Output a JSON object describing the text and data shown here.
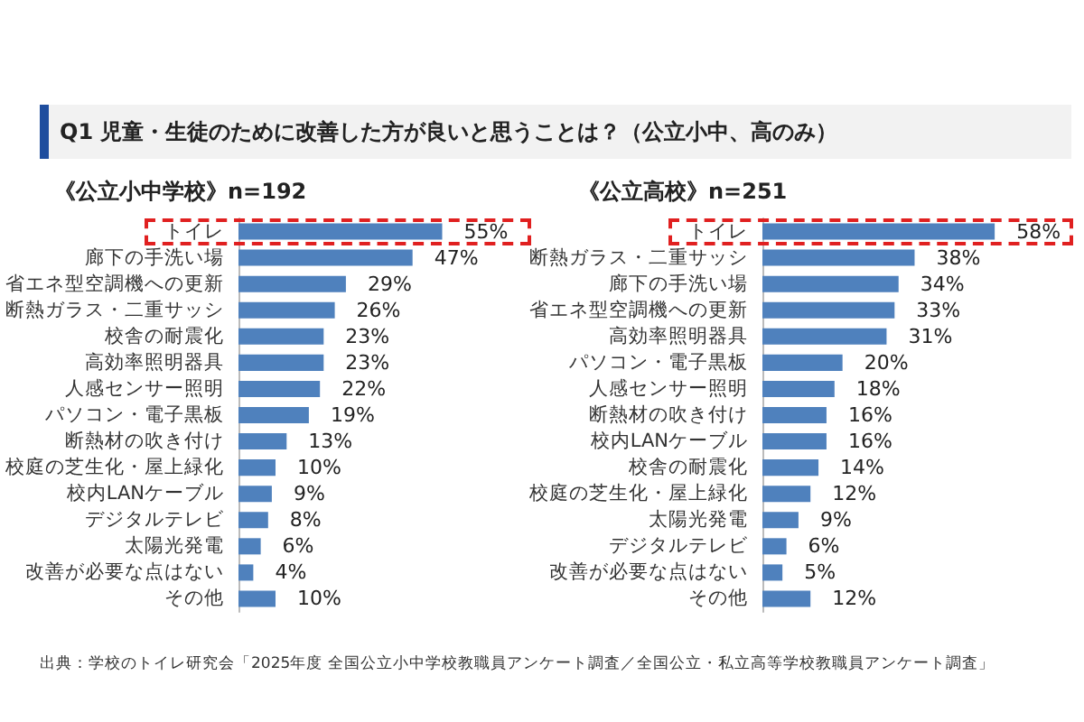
{
  "chart_data": [
    {
      "type": "bar",
      "orientation": "horizontal",
      "title": "Q1 児童・生徒のために改善した方が良いと思うことは？（公立小中、高のみ）",
      "subtitle": "《公立小中学校》n=192",
      "categories": [
        "トイレ",
        "廊下の手洗い場",
        "省エネ型空調機への更新",
        "断熱ガラス・二重サッシ",
        "校舎の耐震化",
        "高効率照明器具",
        "人感センサー照明",
        "パソコン・電子黒板",
        "断熱材の吹き付け",
        "校庭の芝生化・屋上緑化",
        "校内LANケーブル",
        "デジタルテレビ",
        "太陽光発電",
        "改善が必要な点はない",
        "その他"
      ],
      "values": [
        55,
        47,
        29,
        26,
        23,
        23,
        22,
        19,
        13,
        10,
        9,
        8,
        6,
        4,
        10
      ],
      "value_labels": [
        "55%",
        "47%",
        "29%",
        "26%",
        "23%",
        "23%",
        "22%",
        "19%",
        "13%",
        "10%",
        "9%",
        "8%",
        "6%",
        "4%",
        "10%"
      ],
      "color": "#4f81bd",
      "tick_labels": "y"
    },
    {
      "type": "bar",
      "orientation": "horizontal",
      "subtitle": "《公立高校》n=251",
      "categories": [
        "トイレ",
        "断熱ガラス・二重サッシ",
        "廊下の手洗い場",
        "省エネ型空調機への更新",
        "高効率照明器具",
        "パソコン・電子黒板",
        "人感センサー照明",
        "断熱材の吹き付け",
        "校内LANケーブル",
        "校舎の耐震化",
        "校庭の芝生化・屋上緑化",
        "太陽光発電",
        "デジタルテレビ",
        "改善が必要な点はない",
        "その他"
      ],
      "values": [
        58,
        38,
        34,
        33,
        31,
        20,
        18,
        16,
        16,
        14,
        12,
        9,
        6,
        5,
        12
      ],
      "value_labels": [
        "58%",
        "38%",
        "34%",
        "33%",
        "31%",
        "20%",
        "18%",
        "16%",
        "16%",
        "14%",
        "12%",
        "9%",
        "6%",
        "5%",
        "12%"
      ],
      "color": "#4f81bd",
      "tick_labels": "y",
      "annotations": [
        "出典：学校のトイレ研究会「2025年度 全国公立小中学校教職員アンケート調査／全国公立・私立高等学校教職員アンケート調査」"
      ]
    }
  ]
}
